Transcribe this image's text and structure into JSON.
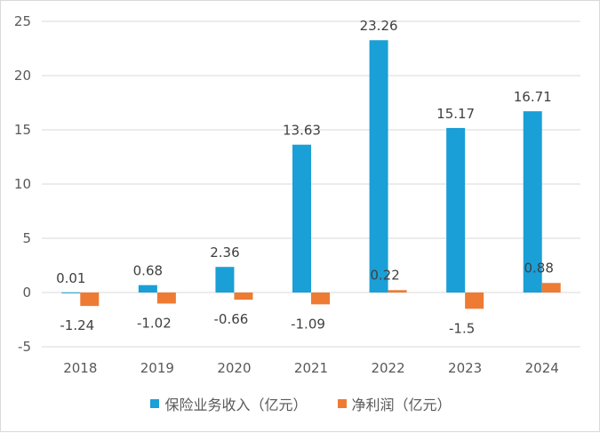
{
  "chart_data": {
    "type": "bar",
    "categories": [
      "2018",
      "2019",
      "2020",
      "2021",
      "2022",
      "2023",
      "2024"
    ],
    "series": [
      {
        "name": "保险业务收入（亿元）",
        "values": [
          0.01,
          0.68,
          2.36,
          13.63,
          23.26,
          15.17,
          16.71
        ],
        "labels": [
          "0.01",
          "0.68",
          "2.36",
          "13.63",
          "23.26",
          "15.17",
          "16.71"
        ],
        "color": "#1a9fd6"
      },
      {
        "name": "净利润（亿元）",
        "values": [
          -1.24,
          -1.02,
          -0.66,
          -1.09,
          0.22,
          -1.5,
          0.88
        ],
        "labels": [
          "-1.24",
          "-1.02",
          "-0.66",
          "-1.09",
          "0.22",
          "-1.5",
          "0.88"
        ],
        "color": "#ee7b33"
      }
    ],
    "ylim": [
      -5,
      25
    ],
    "yticks": [
      -5,
      0,
      5,
      10,
      15,
      20,
      25
    ],
    "grid": true,
    "legend": "bottom",
    "title": "",
    "xlabel": "",
    "ylabel": ""
  }
}
